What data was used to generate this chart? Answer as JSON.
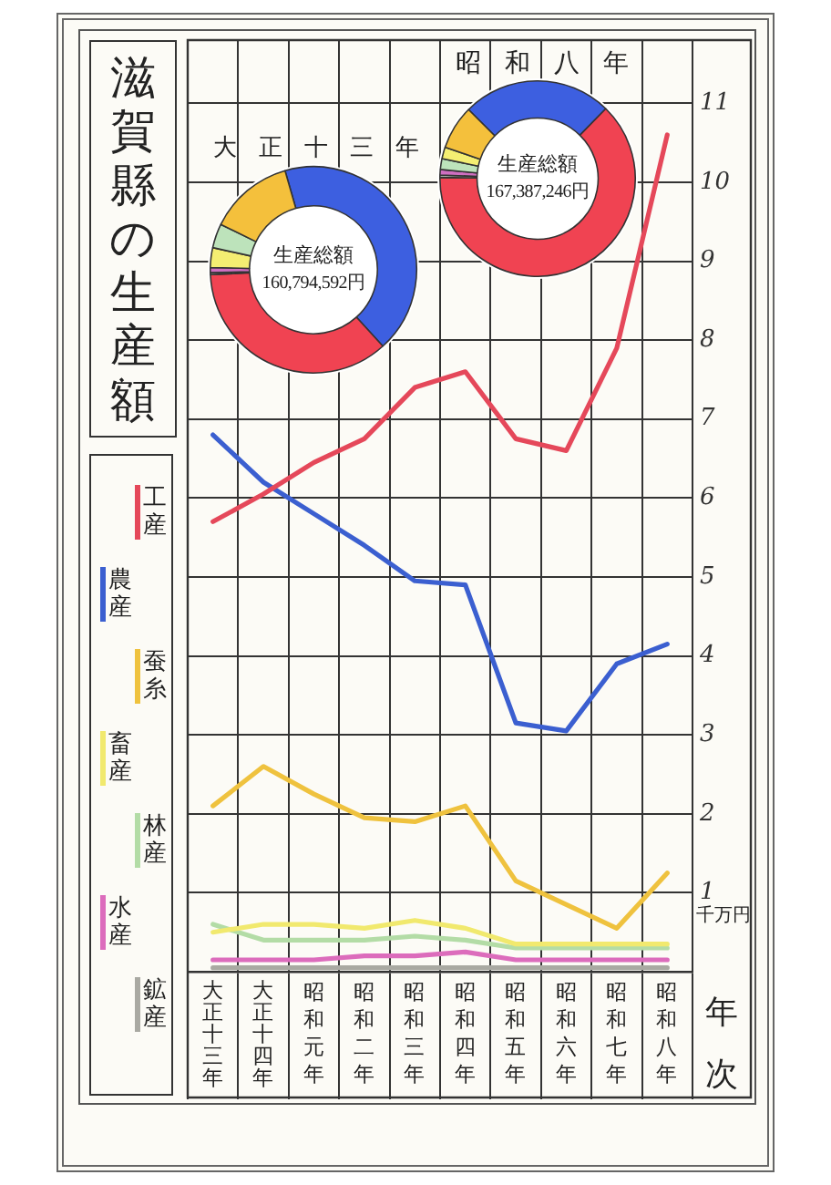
{
  "chart_data": [
    {
      "type": "line",
      "title": "滋賀縣の生産額",
      "categories": [
        "大正十三年",
        "大正十四年",
        "昭和元年",
        "昭和二年",
        "昭和三年",
        "昭和四年",
        "昭和五年",
        "昭和六年",
        "昭和七年",
        "昭和八年"
      ],
      "xlabel": "年次",
      "ylabel": "千万円",
      "ylim": [
        0,
        11.8
      ],
      "yticks": [
        1,
        2,
        3,
        4,
        5,
        6,
        7,
        8,
        9,
        10,
        11
      ],
      "grid": true,
      "legend": "left",
      "series": [
        {
          "name": "工産",
          "color": "#e5485a",
          "values": [
            5.7,
            6.05,
            6.45,
            6.75,
            7.4,
            7.6,
            6.75,
            6.6,
            7.9,
            10.6
          ]
        },
        {
          "name": "農産",
          "color": "#3b5fd0",
          "values": [
            6.8,
            6.2,
            5.8,
            5.4,
            4.95,
            4.9,
            3.15,
            3.05,
            3.9,
            4.15
          ]
        },
        {
          "name": "蚕糸",
          "color": "#efc23e",
          "values": [
            2.1,
            2.6,
            2.25,
            1.95,
            1.9,
            2.1,
            1.15,
            0.85,
            0.55,
            1.25
          ]
        },
        {
          "name": "畜産",
          "color": "#f1e96e",
          "values": [
            0.5,
            0.6,
            0.6,
            0.55,
            0.65,
            0.55,
            0.35,
            0.35,
            0.35,
            0.35
          ]
        },
        {
          "name": "林産",
          "color": "#b3dca6",
          "values": [
            0.6,
            0.4,
            0.4,
            0.4,
            0.45,
            0.4,
            0.3,
            0.3,
            0.3,
            0.3
          ]
        },
        {
          "name": "水産",
          "color": "#dc6cbc",
          "values": [
            0.15,
            0.15,
            0.15,
            0.2,
            0.2,
            0.25,
            0.15,
            0.15,
            0.15,
            0.15
          ]
        },
        {
          "name": "鉱産",
          "color": "#a9a9a2",
          "values": [
            0.05,
            0.05,
            0.05,
            0.05,
            0.05,
            0.05,
            0.05,
            0.05,
            0.05,
            0.05
          ]
        }
      ]
    },
    {
      "type": "donut",
      "title": "大正十三年",
      "categories": [
        null,
        null,
        null,
        null,
        null,
        null,
        null
      ],
      "values": [
        42.7,
        36.0,
        0.3,
        0.8,
        3.1,
        3.8,
        13.3
      ],
      "colors": [
        "#3d5fe0",
        "#f04352",
        "#a9a9a2",
        "#cf6fc0",
        "#f4ee72",
        "#bde3bb",
        "#f4c03c"
      ],
      "annotations": [
        "生産総額",
        "160,794,592円"
      ]
    },
    {
      "type": "donut",
      "title": "昭和八年",
      "categories": [
        null,
        null,
        null,
        null,
        null,
        null,
        null
      ],
      "values": [
        24.8,
        62.9,
        0.4,
        0.9,
        1.8,
        1.9,
        7.3
      ],
      "colors": [
        "#3d5fe0",
        "#f04352",
        "#a9a9a2",
        "#cf6fc0",
        "#bde3bb",
        "#f4ee72",
        "#f4c03c"
      ],
      "annotations": [
        "生産総額",
        "167,387,246円"
      ]
    }
  ]
}
